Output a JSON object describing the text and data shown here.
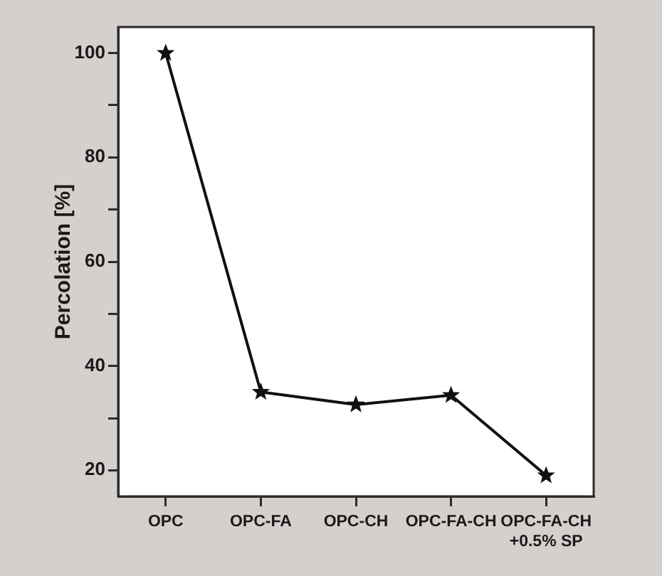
{
  "chart_data": {
    "type": "line",
    "ylabel": "Percolation [%]",
    "categories": [
      "OPC",
      "OPC-FA",
      "OPC-CH",
      "OPC-FA-CH",
      "OPC-FA-CH\n+0.5% SP"
    ],
    "series": [
      {
        "color": "#111111",
        "values": [
          100,
          35,
          32.6,
          34.4,
          19
        ]
      }
    ],
    "ylim": [
      15,
      105
    ],
    "yticks": [
      20,
      {
        "value": 30,
        "label": null
      },
      40,
      {
        "value": 50,
        "label": null
      },
      60,
      {
        "value": 70,
        "label": null
      },
      80,
      {
        "value": 90,
        "label": null
      },
      100
    ],
    "marker": "star",
    "line_style": "solid",
    "legend": false
  }
}
